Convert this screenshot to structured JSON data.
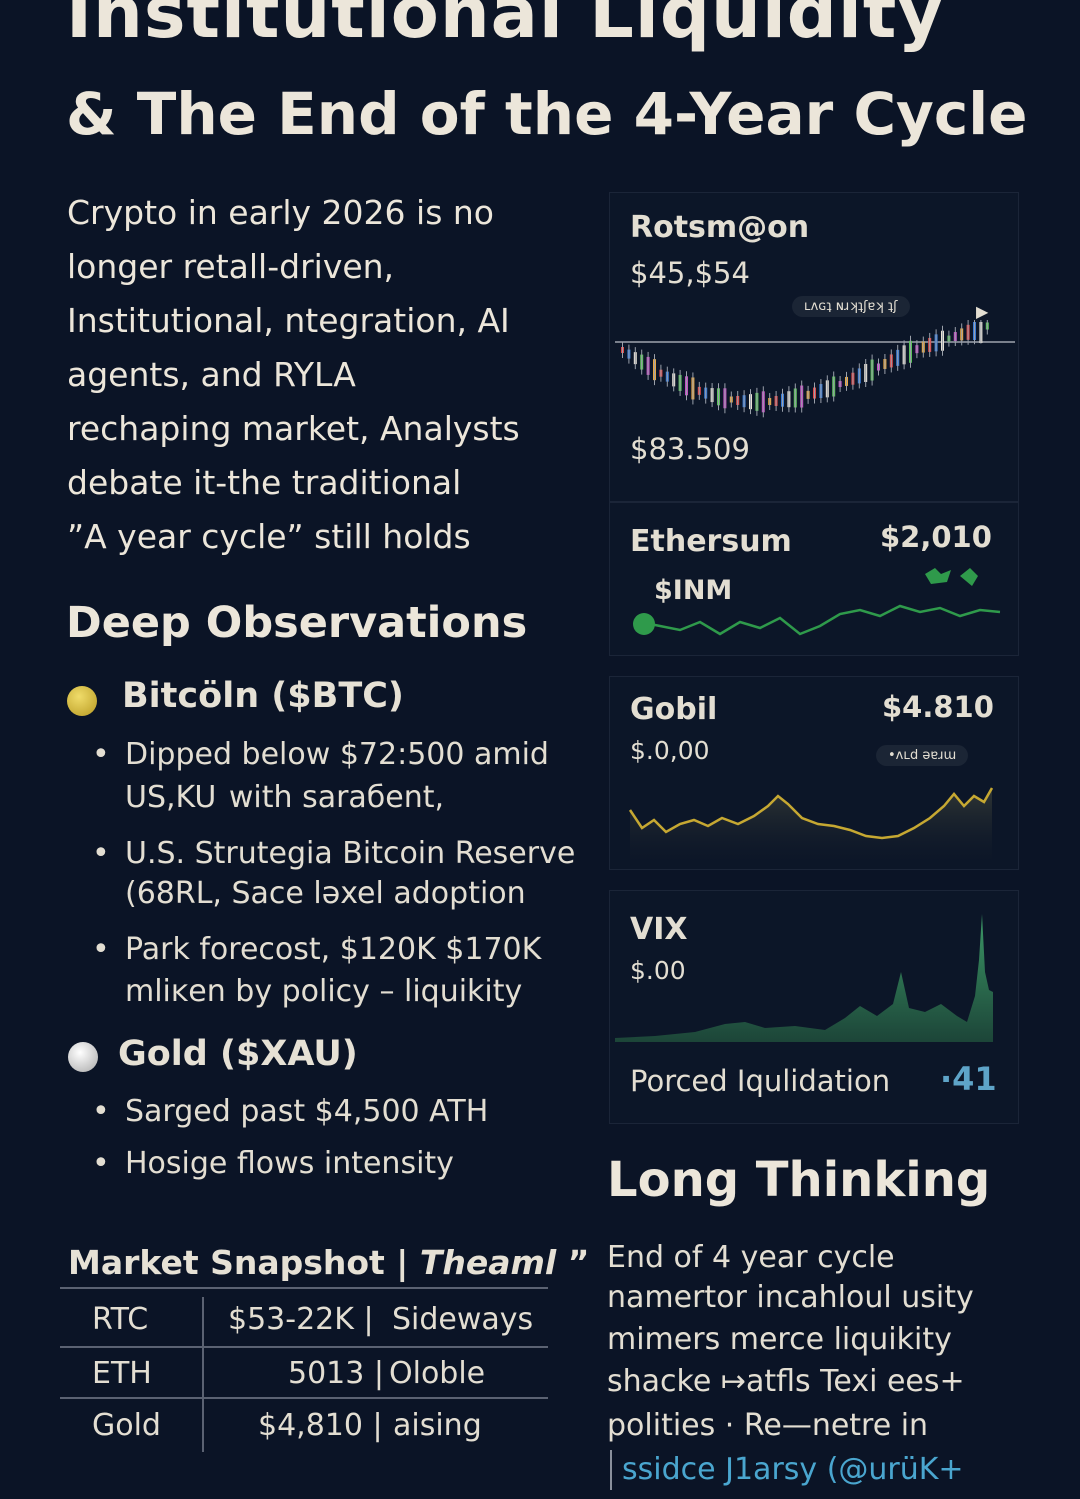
{
  "header": {
    "title_line1": "Institutional Liquidity",
    "title_line2": "& The End of the 4-Year Cycle"
  },
  "intro": {
    "lines": [
      "Crypto in early 2026 is no",
      "longer retall-driven,",
      "Institutional, ntegration, AI",
      "agents, and RYLA",
      "rechaping market, Analysts",
      "debate it-the traditional",
      "”A year cycle” still holds"
    ]
  },
  "observations": {
    "heading": "Deep Observations",
    "bitcoin": {
      "title": "Bitcöln ($BTC)",
      "dot_color": "#d6bb3a",
      "bullets": [
        {
          "line1": "Dipped below $72:500 amid",
          "line2": "US,KU  with saraбent,"
        },
        {
          "line1": "U.S. Strutegia Bitcoin Reserve",
          "line2": "(68RL, Sace ləxel adoption"
        },
        {
          "line1": "Park forecost, $120K $170K",
          "line2": "mliĸen by policy – liquikity"
        }
      ]
    },
    "gold": {
      "title": "Gold ($XAU)",
      "dot_color": "#d9d9d9",
      "bullets": [
        {
          "line1": "Sarged past $4,500 ATH"
        },
        {
          "line1": "Hosige flows intensity"
        }
      ]
    }
  },
  "snapshot": {
    "heading": "Market Snapshot |",
    "heading_italic": "Theaml",
    "heading_tail": "”",
    "rows": [
      {
        "asset": "RTC",
        "value": "$53-22K |",
        "trend": "Sideways"
      },
      {
        "asset": "ETH",
        "value": "5013 |",
        "trend": "Oloble"
      },
      {
        "asset": "Gold",
        "value": "$4,810 |",
        "trend": "aising"
      }
    ]
  },
  "panels": {
    "btc": {
      "name": "Rotsm@on",
      "price": "$45,$54",
      "low": "$83.509",
      "pill": "ʟʌɢʇ ɴɹʞʇʃɐʞ ʇʃ"
    },
    "eth": {
      "name": "Ethersum",
      "price": "$2,010",
      "sub": "$INM"
    },
    "gold": {
      "name": "Gobil",
      "price": "$4.810",
      "sub": "$.0,00",
      "pill": "•ʌʟd əɐɹɯ"
    },
    "vix": {
      "name": "VIX",
      "sub": "$.00"
    },
    "forced": {
      "label": "Porced Iqulidation",
      "value": "·41"
    }
  },
  "colors": {
    "background": "#0b1426",
    "eth_green": "#2f9a4b",
    "gold_line": "#c6a832",
    "vix_green": "#3fa06a"
  },
  "long_thinking": {
    "heading": "Long Thinking",
    "lines": [
      "End of 4 year cycle",
      "namertor incahloul usity",
      "mimers merce liquikity",
      "shacke ↦atfls  Texi  ees+",
      "polities · Re—netre in"
    ],
    "footer": "ssidce J1arsy (@urüK+"
  }
}
